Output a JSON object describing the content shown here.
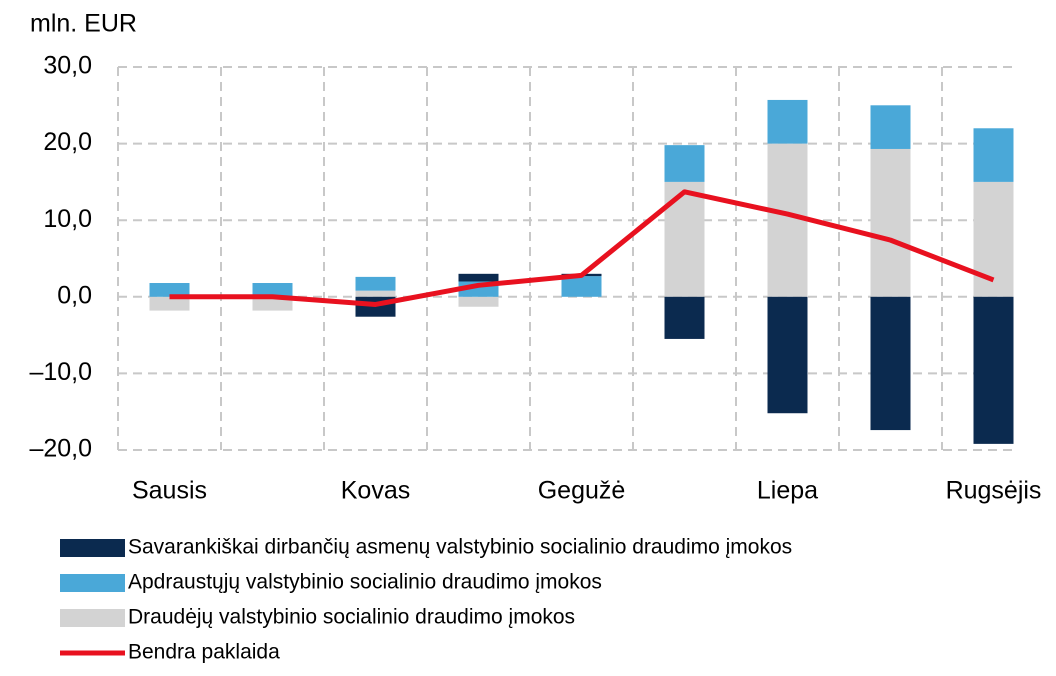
{
  "chart_data": {
    "type": "bar",
    "stacked": true,
    "y_axis_label": "mln. EUR",
    "categories": [
      "Sausis",
      null,
      "Kovas",
      null,
      "Gegužė",
      null,
      "Liepa",
      null,
      "Rugsėjis"
    ],
    "series": [
      {
        "name": "Savarankiškai dirbančių asmenų valstybinio socialinio draudimo įmokos",
        "color": "#0b2a4f",
        "values": [
          0,
          0,
          -2.6,
          1.0,
          0.3,
          -5.5,
          -15.2,
          -17.4,
          -19.2
        ]
      },
      {
        "name": "Apdraustųjų valstybinio socialinio draudimo įmokos",
        "color": "#4aa8d8",
        "values": [
          1.8,
          1.8,
          1.8,
          2.0,
          2.7,
          4.8,
          5.7,
          5.7,
          7.0
        ]
      },
      {
        "name": "Draudėjų valstybinio socialinio draudimo įmokos",
        "color": "#d3d3d3",
        "values": [
          -1.8,
          -1.8,
          0.8,
          -1.3,
          0,
          15.0,
          20.0,
          19.3,
          15.0
        ]
      },
      {
        "name": "Bendra paklaida",
        "type": "line",
        "color": "#e8111f",
        "values": [
          0,
          0,
          -1.0,
          1.5,
          2.8,
          13.7,
          10.8,
          7.4,
          2.2
        ]
      }
    ],
    "ylim": [
      -20,
      30
    ],
    "yticks": [
      {
        "value": -20,
        "label": "–20,0"
      },
      {
        "value": -10,
        "label": "–10,0"
      },
      {
        "value": 0,
        "label": "0,0"
      },
      {
        "value": 10,
        "label": "10,0"
      },
      {
        "value": 20,
        "label": "20,0"
      },
      {
        "value": 30,
        "label": "30,0"
      }
    ],
    "grid": true
  }
}
